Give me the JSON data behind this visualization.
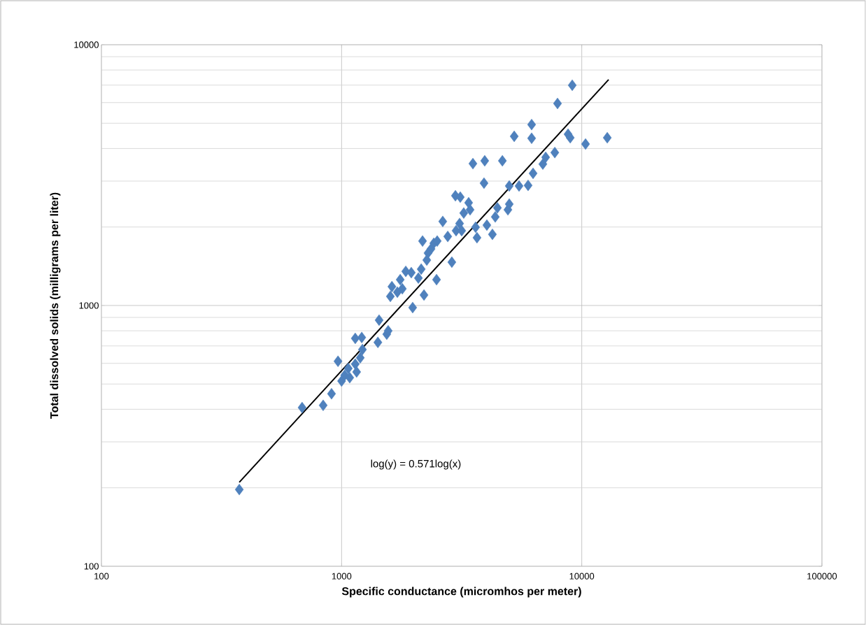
{
  "chart_data": {
    "type": "scatter",
    "xlabel": "Specific conductance (micromhos per meter)",
    "ylabel": "Total dissolved solids (milligrams per liter)",
    "log": "xy",
    "grid": true,
    "marker": "diamond",
    "xlim": [
      100,
      100000
    ],
    "ylim": [
      100,
      10000
    ],
    "xticks": [
      100,
      1000,
      10000,
      100000
    ],
    "yticks": [
      100,
      1000,
      10000
    ],
    "annotations": [
      "log(y) = 0.571log(x)"
    ],
    "series": [
      {
        "color": "#4f81bd",
        "x": [
          375,
          685,
          838,
          908,
          966,
          1000,
          1030,
          1066,
          1140,
          1196,
          1221,
          1140,
          1213,
          1416,
          1433,
          1542,
          1563,
          1596,
          1707,
          1790,
          1754,
          1850,
          1951,
          1977,
          2088,
          2145,
          2203,
          2173,
          2263,
          2357,
          2485,
          2638,
          2767,
          2878,
          2978,
          3120,
          2997,
          3100,
          3226,
          3381,
          3522,
          3614,
          3663,
          3918,
          3944,
          4026,
          4246,
          4363,
          4454,
          4671,
          4926,
          4990,
          4990,
          5233,
          5482,
          5979,
          6184,
          6184,
          6270,
          6887,
          7075,
          7722,
          7929,
          8770,
          8955,
          9128,
          10370,
          12770,
          2290,
          2420,
          2501,
          1620,
          3162,
          3428,
          1081,
          1155
        ],
        "values": [
          197,
          406,
          414,
          459,
          611,
          513,
          540,
          574,
          596,
          630,
          678,
          748,
          754,
          722,
          879,
          776,
          800,
          1084,
          1125,
          1159,
          1256,
          1352,
          1337,
          982,
          1274,
          1379,
          1097,
          1766,
          1493,
          1648,
          1256,
          2100,
          1840,
          1466,
          2636,
          2604,
          1937,
          2063,
          2262,
          2478,
          3500,
          1996,
          1820,
          2946,
          3589,
          2033,
          1875,
          2187,
          2370,
          3589,
          2328,
          2449,
          2873,
          4455,
          2873,
          2889,
          4943,
          4377,
          3212,
          3487,
          3701,
          3860,
          5953,
          4539,
          4399,
          6994,
          4160,
          4399,
          1589,
          1733,
          1766,
          1181,
          1937,
          2328,
          529,
          556
        ]
      },
      {
        "type": "line",
        "color": "#000000",
        "marker": "none",
        "x": [
          375,
          12940
        ],
        "values": [
          210,
          7350
        ]
      }
    ]
  }
}
